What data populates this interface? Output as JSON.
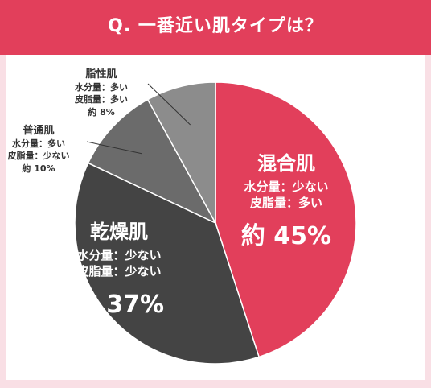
{
  "header": {
    "title": "Q. 一番近い肌タイプは？",
    "background": "#e23f5b"
  },
  "chart_data": {
    "type": "pie",
    "title": "Q. 一番近い肌タイプは？",
    "slices": [
      {
        "label": "混合肌",
        "percent": 45,
        "color": "#e23f5b",
        "lines": [
          "水分量：少ない",
          "皮脂量：多い"
        ],
        "value_text": "約 45%"
      },
      {
        "label": "乾燥肌",
        "percent": 37,
        "color": "#444444",
        "lines": [
          "水分量：少ない",
          "皮脂量：少ない"
        ],
        "value_text": "約 37%"
      },
      {
        "label": "普通肌",
        "percent": 10,
        "color": "#6b6b6b",
        "lines": [
          "水分量：多い",
          "皮脂量：少ない"
        ],
        "value_text": "約 10%"
      },
      {
        "label": "脂性肌",
        "percent": 8,
        "color": "#8c8c8c",
        "lines": [
          "水分量：多い",
          "皮脂量：多い"
        ],
        "value_text": "約 8%"
      }
    ]
  }
}
